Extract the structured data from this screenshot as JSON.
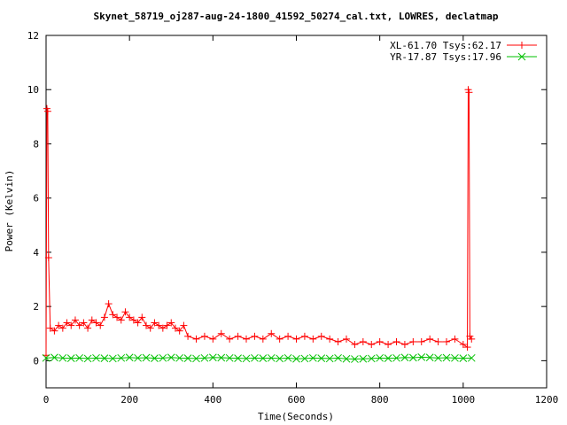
{
  "chart_data": {
    "type": "scatter",
    "title": "Skynet_58719_oj287-aug-24-1800_41592_50274_cal.txt, LOWRES, declatmap",
    "xlabel": "Time(Seconds)",
    "ylabel": "Power (Kelvin)",
    "xlim": [
      0,
      1200
    ],
    "ylim": [
      -1,
      12
    ],
    "x_ticks": [
      "0",
      "200",
      "400",
      "600",
      "800",
      "1000",
      "1200"
    ],
    "y_ticks": [
      "0",
      "2",
      "4",
      "6",
      "8",
      "10",
      "12"
    ],
    "grid": false,
    "legend_position": "top-right",
    "series": [
      {
        "name": "XL-61.70 Tsys:62.17",
        "color": "#ff0000",
        "marker": "plus",
        "x": [
          0,
          2,
          4,
          6,
          10,
          20,
          30,
          40,
          50,
          60,
          70,
          80,
          90,
          100,
          110,
          120,
          130,
          140,
          150,
          160,
          170,
          180,
          190,
          200,
          210,
          220,
          230,
          240,
          250,
          260,
          270,
          280,
          290,
          300,
          310,
          320,
          330,
          340,
          360,
          380,
          400,
          420,
          440,
          460,
          480,
          500,
          520,
          540,
          560,
          580,
          600,
          620,
          640,
          660,
          680,
          700,
          720,
          740,
          760,
          780,
          800,
          820,
          840,
          860,
          880,
          900,
          920,
          940,
          960,
          980,
          1000,
          1010,
          1012,
          1014,
          1016,
          1020
        ],
        "y": [
          0.2,
          9.3,
          9.2,
          3.8,
          1.2,
          1.1,
          1.3,
          1.2,
          1.4,
          1.3,
          1.5,
          1.3,
          1.4,
          1.2,
          1.5,
          1.4,
          1.3,
          1.6,
          2.1,
          1.7,
          1.6,
          1.5,
          1.8,
          1.6,
          1.5,
          1.4,
          1.6,
          1.3,
          1.2,
          1.4,
          1.3,
          1.2,
          1.3,
          1.4,
          1.2,
          1.1,
          1.3,
          0.9,
          0.8,
          0.9,
          0.8,
          1.0,
          0.8,
          0.9,
          0.8,
          0.9,
          0.8,
          1.0,
          0.8,
          0.9,
          0.8,
          0.9,
          0.8,
          0.9,
          0.8,
          0.7,
          0.8,
          0.6,
          0.7,
          0.6,
          0.7,
          0.6,
          0.7,
          0.6,
          0.7,
          0.7,
          0.8,
          0.7,
          0.7,
          0.8,
          0.6,
          0.5,
          10.0,
          9.9,
          0.9,
          0.8
        ]
      },
      {
        "name": "YR-17.87 Tsys:17.96",
        "color": "#00c000",
        "marker": "cross",
        "x": [
          0,
          20,
          40,
          60,
          80,
          100,
          120,
          140,
          160,
          180,
          200,
          220,
          240,
          260,
          280,
          300,
          320,
          340,
          360,
          380,
          400,
          420,
          440,
          460,
          480,
          500,
          520,
          540,
          560,
          580,
          600,
          620,
          640,
          660,
          680,
          700,
          720,
          740,
          760,
          780,
          800,
          820,
          840,
          860,
          880,
          900,
          920,
          940,
          960,
          980,
          1000,
          1020
        ],
        "y": [
          0.1,
          0.12,
          0.1,
          0.09,
          0.1,
          0.08,
          0.1,
          0.09,
          0.08,
          0.1,
          0.12,
          0.1,
          0.11,
          0.09,
          0.1,
          0.12,
          0.1,
          0.09,
          0.08,
          0.1,
          0.12,
          0.11,
          0.1,
          0.09,
          0.08,
          0.1,
          0.09,
          0.1,
          0.08,
          0.1,
          0.07,
          0.08,
          0.1,
          0.09,
          0.08,
          0.1,
          0.07,
          0.06,
          0.07,
          0.08,
          0.1,
          0.09,
          0.1,
          0.12,
          0.11,
          0.13,
          0.12,
          0.1,
          0.11,
          0.1,
          0.09,
          0.1
        ]
      }
    ]
  }
}
